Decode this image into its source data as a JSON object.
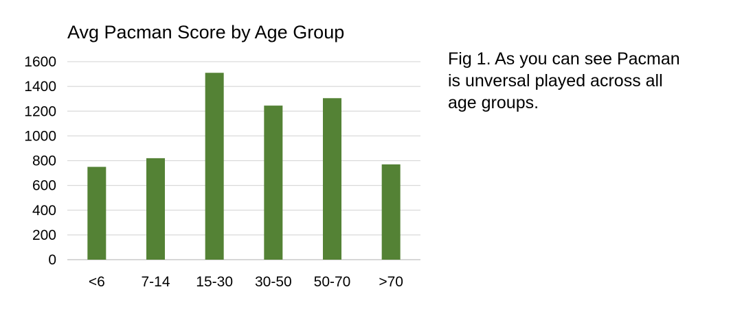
{
  "chart_data": {
    "type": "bar",
    "title": "Avg Pacman Score by Age Group",
    "xlabel": "",
    "ylabel": "",
    "categories": [
      "<6",
      "7-14",
      "15-30",
      "30-50",
      "50-70",
      ">70"
    ],
    "values": [
      750,
      820,
      1510,
      1245,
      1305,
      770
    ],
    "ylim": [
      0,
      1600
    ],
    "yticks": [
      0,
      200,
      400,
      600,
      800,
      1000,
      1200,
      1400,
      1600
    ],
    "grid": true,
    "legend": "none",
    "bar_color": "#548235",
    "grid_color": "#d9d9d9"
  },
  "caption": {
    "lines": [
      "Fig 1. As you can see Pacman",
      "is unversal played across all",
      "age groups."
    ]
  }
}
